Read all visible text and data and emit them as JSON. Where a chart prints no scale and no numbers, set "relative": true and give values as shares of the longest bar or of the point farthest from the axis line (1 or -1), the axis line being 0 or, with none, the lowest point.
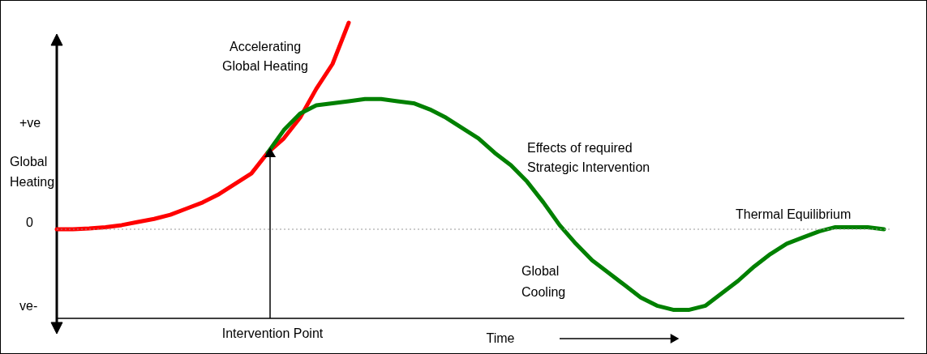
{
  "chart_data": {
    "type": "line",
    "relative": true,
    "xlabel": "Time",
    "ylabel": "Global Heating",
    "legend": false,
    "grid": false,
    "categories": [
      null,
      null,
      null,
      null,
      null,
      null,
      null,
      null,
      null,
      null,
      null,
      null,
      null,
      null,
      null,
      null,
      null,
      null,
      null,
      null,
      null,
      null,
      null,
      null,
      null,
      null,
      null,
      null,
      null,
      null,
      null,
      null,
      null,
      null,
      null,
      null,
      null,
      null,
      null,
      null,
      null,
      null,
      null,
      null,
      null,
      null,
      null,
      null,
      null,
      null,
      null,
      null
    ],
    "series": [
      {
        "name": "Accelerating Global Heating",
        "color": "#ff0000",
        "values": [
          0,
          0,
          0.004,
          0.01,
          0.02,
          0.035,
          0.05,
          0.07,
          0.1,
          0.13,
          0.17,
          0.22,
          0.27,
          0.37,
          0.44,
          0.54,
          0.68,
          0.8,
          1,
          null,
          null,
          null,
          null,
          null,
          null,
          null,
          null,
          null,
          null,
          null,
          null,
          null,
          null,
          null,
          null,
          null,
          null,
          null,
          null,
          null,
          null,
          null,
          null,
          null,
          null,
          null,
          null,
          null,
          null,
          null,
          null,
          null
        ]
      },
      {
        "name": "Effects of required Strategic Intervention",
        "color": "#008000",
        "values": [
          null,
          null,
          null,
          null,
          null,
          null,
          null,
          null,
          null,
          null,
          null,
          null,
          null,
          0.37,
          0.48,
          0.56,
          0.6,
          0.61,
          0.62,
          0.63,
          0.63,
          0.62,
          0.61,
          0.58,
          0.54,
          0.49,
          0.44,
          0.37,
          0.31,
          0.23,
          0.13,
          0.02,
          -0.07,
          -0.15,
          -0.21,
          -0.27,
          -0.33,
          -0.37,
          -0.39,
          -0.39,
          -0.37,
          -0.31,
          -0.25,
          -0.18,
          -0.12,
          -0.07,
          -0.04,
          -0.01,
          0.01,
          0.01,
          0.01,
          0
        ]
      }
    ],
    "ref_lines": [
      {
        "axis": "y",
        "value": 0,
        "label": "0",
        "line_style": "dotted",
        "color": "#999999"
      }
    ],
    "annotations": [
      "+ve",
      "ve-",
      "Intervention Point",
      "Global Cooling",
      "Thermal Equilibrium"
    ]
  }
}
